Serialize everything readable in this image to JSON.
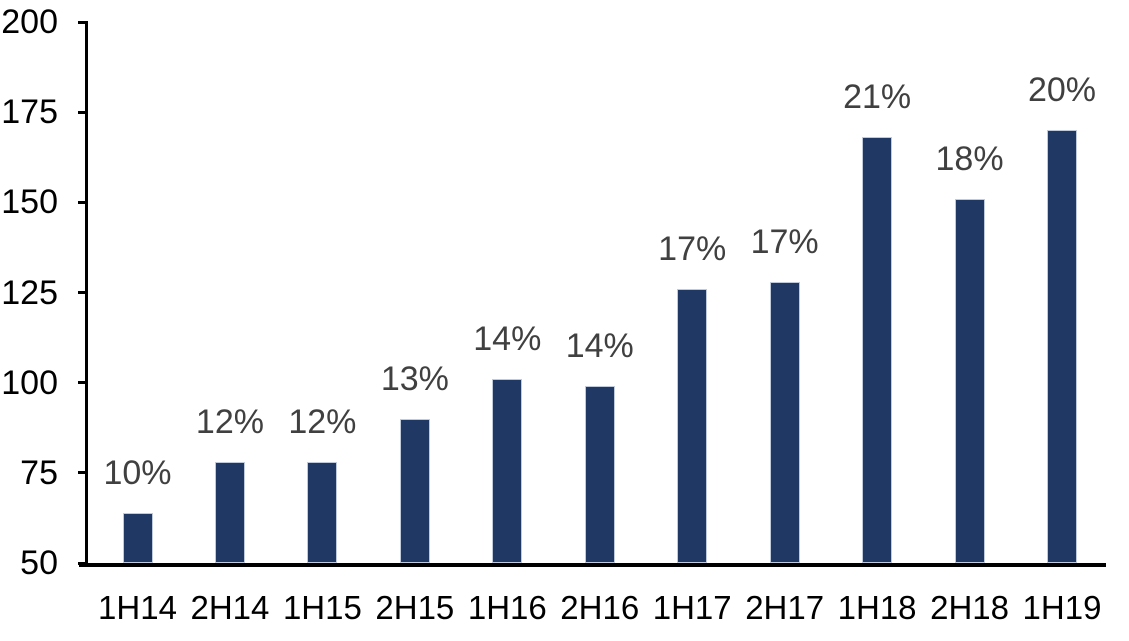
{
  "chart_data": {
    "type": "bar",
    "title": "",
    "xlabel": "",
    "ylabel": "",
    "categories": [
      "1H14",
      "2H14",
      "1H15",
      "2H15",
      "1H16",
      "2H16",
      "1H17",
      "2H17",
      "1H18",
      "2H18",
      "1H19"
    ],
    "values": [
      64,
      78,
      78,
      90,
      101,
      99,
      126,
      128,
      168,
      151,
      170
    ],
    "data_labels": [
      "10%",
      "12%",
      "12%",
      "13%",
      "14%",
      "14%",
      "17%",
      "17%",
      "21%",
      "18%",
      "20%"
    ],
    "ylim": [
      50,
      200
    ],
    "yticks": [
      200,
      175,
      150,
      125,
      100,
      75,
      50
    ],
    "grid": false,
    "legend_position": "none",
    "colors": {
      "bar_fill": "#1f3864",
      "bar_border": "#bfcbdd",
      "data_label": "#404040",
      "axis_text": "#000000",
      "axis_line": "#000000",
      "background": "#ffffff"
    }
  }
}
